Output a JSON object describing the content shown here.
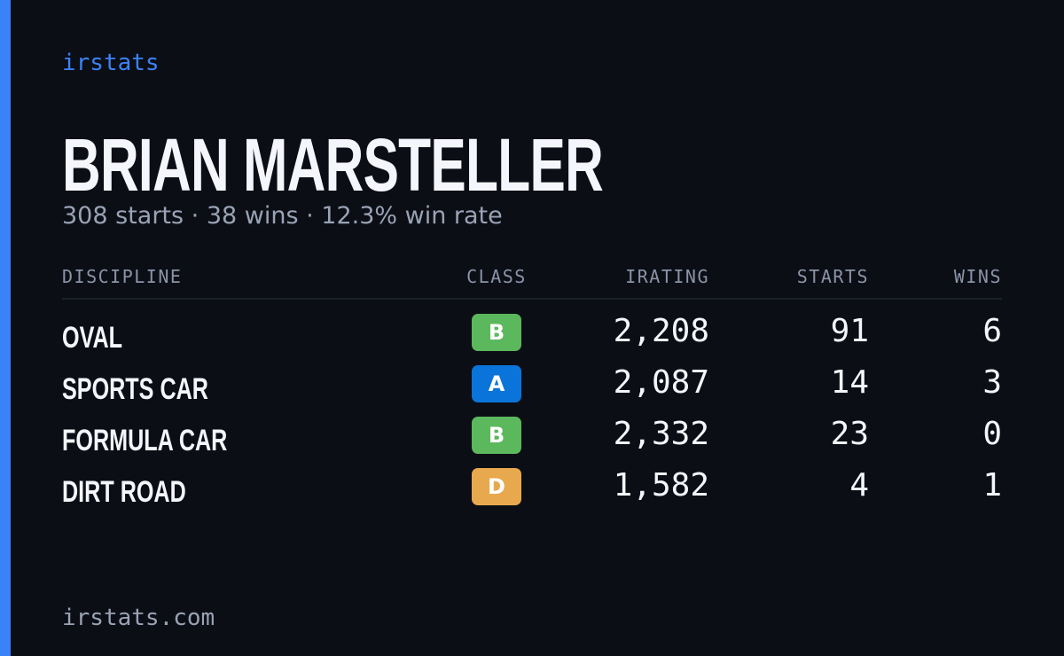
{
  "brand": "irstats",
  "profile": {
    "name": "BRIAN MARSTELLER",
    "summary": "308 starts · 38 wins · 12.3% win rate"
  },
  "table": {
    "headers": [
      "DISCIPLINE",
      "CLASS",
      "IRATING",
      "STARTS",
      "WINS"
    ],
    "rows": [
      [
        "OVAL",
        "B",
        "2,208",
        "91",
        "6"
      ],
      [
        "SPORTS CAR",
        "A",
        "2,087",
        "14",
        "3"
      ],
      [
        "FORMULA CAR",
        "B",
        "2,332",
        "23",
        "0"
      ],
      [
        "DIRT ROAD",
        "D",
        "1,582",
        "4",
        "1"
      ]
    ],
    "class_colors": [
      "#5cb85c",
      "#0a74da",
      "#5cb85c",
      "#e8a94e"
    ]
  },
  "footer": "irstats.com"
}
